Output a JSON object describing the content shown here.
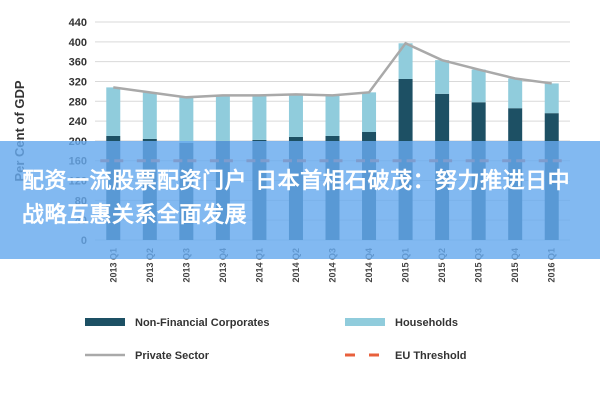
{
  "chart_data": {
    "type": "bar",
    "stacked": true,
    "ylabel": "Per Cent of GDP",
    "ylim": [
      0,
      440
    ],
    "yticks": [
      0,
      40,
      80,
      120,
      160,
      200,
      240,
      280,
      320,
      360,
      400,
      440
    ],
    "grid": true,
    "legend_position": "bottom",
    "categories": [
      "2013 Q1",
      "2013 Q2",
      "2013 Q3",
      "2013 Q4",
      "2014 Q1",
      "2014 Q2",
      "2014 Q3",
      "2014 Q4",
      "2015 Q1",
      "2015 Q2",
      "2015 Q3",
      "2015 Q4",
      "2016 Q1"
    ],
    "series": [
      {
        "name": "Non-Financial Corporates",
        "kind": "bar",
        "color": "#1d5064",
        "values": [
          210,
          204,
          196,
          200,
          202,
          208,
          210,
          218,
          325,
          295,
          278,
          266,
          256
        ]
      },
      {
        "name": "Households",
        "kind": "bar",
        "color": "#90ccdc",
        "values": [
          98,
          94,
          92,
          92,
          90,
          86,
          82,
          80,
          72,
          68,
          66,
          60,
          60
        ]
      },
      {
        "name": "Private Sector",
        "kind": "line",
        "color": "#a9a9a9",
        "values": [
          308,
          298,
          288,
          292,
          292,
          294,
          292,
          298,
          397,
          363,
          344,
          326,
          316
        ]
      },
      {
        "name": "EU Threshold",
        "kind": "dashed-line",
        "color": "#e8603c",
        "values": [
          160,
          160,
          160,
          160,
          160,
          160,
          160,
          160,
          160,
          160,
          160,
          160,
          160
        ]
      }
    ]
  },
  "overlay": {
    "banner_text": "配资一流股票配资门户 日本首相石破茂：努力推进日中战略互惠关系全面发展"
  }
}
